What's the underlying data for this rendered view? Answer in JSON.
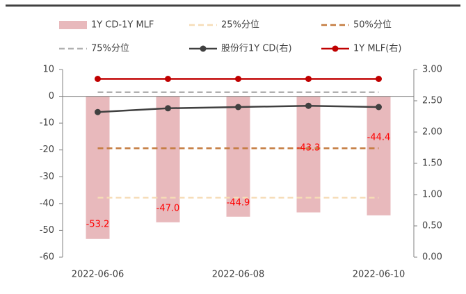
{
  "chart_data": {
    "type": "bar_line",
    "categories": [
      "2022-06-06",
      null,
      "2022-06-08",
      null,
      "2022-06-10"
    ],
    "series": [
      {
        "name": "1Y CD-1Y MLF",
        "kind": "bar",
        "color": "#e8b9bc",
        "values": [
          -53.2,
          -47.0,
          -44.9,
          -43.3,
          -44.4
        ],
        "value_labels": [
          "-53.2",
          "-47.0",
          "-44.9",
          "-43.3",
          "-44.4"
        ]
      },
      {
        "name": "25%分位",
        "kind": "dash",
        "color": "#f6dcb6",
        "values": [
          -37.8,
          -37.8,
          -37.8,
          -37.8,
          -37.8
        ]
      },
      {
        "name": "50%分位",
        "kind": "dash",
        "color": "#c47a3e",
        "values": [
          -19.4,
          -19.4,
          -19.4,
          -19.4,
          -19.4
        ]
      },
      {
        "name": "75%分位",
        "kind": "dash",
        "color": "#b0b0b0",
        "values": [
          1.5,
          1.5,
          1.5,
          1.5,
          1.5
        ]
      },
      {
        "name": "股份行1Y CD(右)",
        "kind": "line",
        "axis": "y2",
        "color": "#404040",
        "values": [
          2.32,
          2.38,
          2.4,
          2.42,
          2.4
        ]
      },
      {
        "name": "1Y MLF(右)",
        "kind": "line",
        "axis": "y2",
        "color": "#c00000",
        "values": [
          2.85,
          2.85,
          2.85,
          2.85,
          2.85
        ]
      }
    ],
    "ylim": [
      -60,
      10
    ],
    "yticks": [
      -60,
      -50,
      -40,
      -30,
      -20,
      -10,
      0,
      10
    ],
    "y2lim": [
      0,
      3
    ],
    "y2ticks": [
      {
        "value": 0,
        "label": "0.00"
      },
      {
        "value": 0.5,
        "label": "0.50"
      },
      {
        "value": 1,
        "label": "1.00"
      },
      {
        "value": 1.5,
        "label": "1.50"
      },
      {
        "value": 2,
        "label": "2.00"
      },
      {
        "value": 2.5,
        "label": "2.50"
      },
      {
        "value": 3,
        "label": "3.00"
      }
    ]
  }
}
